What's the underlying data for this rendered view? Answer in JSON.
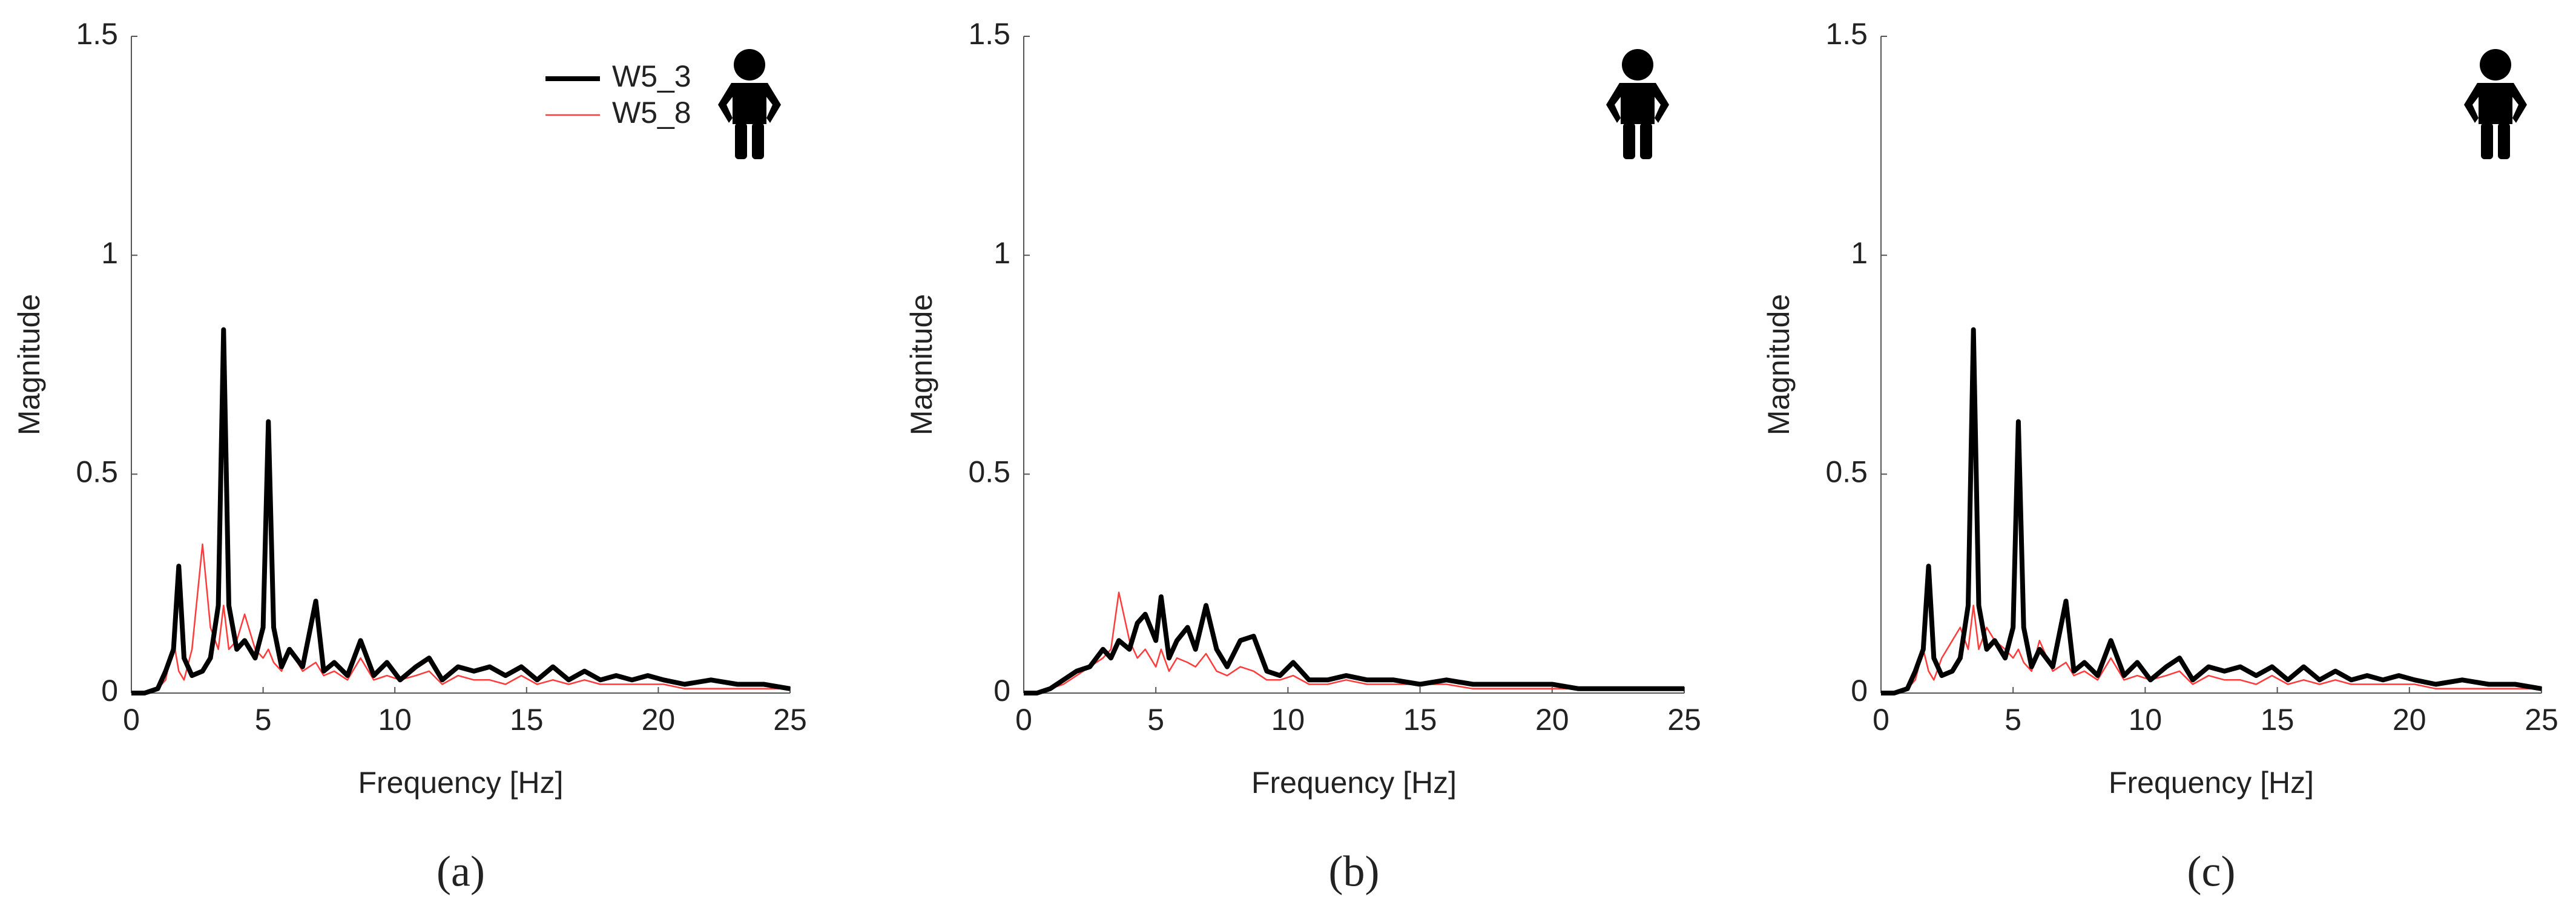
{
  "chart_data": [
    {
      "type": "line",
      "caption": "(a)",
      "xlabel": "Frequency  [Hz]",
      "ylabel": "Magnitude",
      "legend": "upper right",
      "xlim": [
        0,
        25
      ],
      "ylim": [
        0,
        1.5
      ],
      "xticks": [
        0,
        5,
        10,
        15,
        20,
        25
      ],
      "yticks": [
        0,
        0.5,
        1,
        1.5
      ],
      "x": [
        0,
        0.5,
        1,
        1.3,
        1.6,
        1.8,
        2.0,
        2.3,
        2.7,
        3.0,
        3.3,
        3.5,
        3.7,
        4.0,
        4.3,
        4.7,
        5.0,
        5.2,
        5.4,
        5.7,
        6.0,
        6.5,
        7.0,
        7.3,
        7.7,
        8.2,
        8.7,
        9.2,
        9.7,
        10.2,
        10.8,
        11.3,
        11.8,
        12.4,
        13,
        13.6,
        14.2,
        14.8,
        15.4,
        16,
        16.6,
        17.2,
        17.8,
        18.4,
        19,
        19.6,
        20.2,
        21,
        22,
        23,
        24,
        25
      ],
      "series": [
        {
          "name": "W5_3",
          "color": "#000000",
          "values": [
            0,
            0,
            0.01,
            0.05,
            0.1,
            0.29,
            0.08,
            0.04,
            0.05,
            0.08,
            0.2,
            0.83,
            0.2,
            0.1,
            0.12,
            0.08,
            0.15,
            0.62,
            0.15,
            0.06,
            0.1,
            0.06,
            0.21,
            0.05,
            0.07,
            0.04,
            0.12,
            0.04,
            0.07,
            0.03,
            0.06,
            0.08,
            0.03,
            0.06,
            0.05,
            0.06,
            0.04,
            0.06,
            0.03,
            0.06,
            0.03,
            0.05,
            0.03,
            0.04,
            0.03,
            0.04,
            0.03,
            0.02,
            0.03,
            0.02,
            0.02,
            0.01
          ]
        },
        {
          "name": "W5_8",
          "color": "#ff3b3b",
          "values": [
            0,
            0,
            0.01,
            0.03,
            0.12,
            0.05,
            0.03,
            0.1,
            0.34,
            0.15,
            0.1,
            0.2,
            0.1,
            0.12,
            0.18,
            0.1,
            0.08,
            0.1,
            0.07,
            0.05,
            0.1,
            0.05,
            0.07,
            0.04,
            0.05,
            0.03,
            0.08,
            0.03,
            0.04,
            0.03,
            0.04,
            0.05,
            0.02,
            0.04,
            0.03,
            0.03,
            0.02,
            0.04,
            0.02,
            0.03,
            0.02,
            0.03,
            0.02,
            0.02,
            0.02,
            0.02,
            0.02,
            0.01,
            0.01,
            0.01,
            0.01,
            0.01
          ]
        }
      ]
    },
    {
      "type": "line",
      "caption": "(b)",
      "xlabel": "Frequency  [Hz]",
      "ylabel": "Magnitude",
      "xlim": [
        0,
        25
      ],
      "ylim": [
        0,
        1.5
      ],
      "xticks": [
        0,
        5,
        10,
        15,
        20,
        25
      ],
      "yticks": [
        0,
        0.5,
        1,
        1.5
      ],
      "x": [
        0,
        0.5,
        1,
        1.5,
        2,
        2.5,
        3,
        3.3,
        3.6,
        4,
        4.3,
        4.6,
        5,
        5.2,
        5.5,
        5.8,
        6.2,
        6.5,
        6.9,
        7.3,
        7.7,
        8.2,
        8.7,
        9.2,
        9.7,
        10.2,
        10.8,
        11.5,
        12.2,
        13,
        14,
        15,
        16,
        17,
        18,
        19,
        20,
        21,
        22,
        23,
        24,
        25
      ],
      "series": [
        {
          "color": "#000000",
          "values": [
            0,
            0,
            0.01,
            0.03,
            0.05,
            0.06,
            0.1,
            0.08,
            0.12,
            0.1,
            0.16,
            0.18,
            0.12,
            0.22,
            0.08,
            0.12,
            0.15,
            0.1,
            0.2,
            0.1,
            0.06,
            0.12,
            0.13,
            0.05,
            0.04,
            0.07,
            0.03,
            0.03,
            0.04,
            0.03,
            0.03,
            0.02,
            0.03,
            0.02,
            0.02,
            0.02,
            0.02,
            0.01,
            0.01,
            0.01,
            0.01,
            0.01
          ]
        },
        {
          "color": "#ff3b3b",
          "values": [
            0,
            0,
            0.01,
            0.02,
            0.04,
            0.06,
            0.08,
            0.1,
            0.23,
            0.12,
            0.08,
            0.1,
            0.06,
            0.1,
            0.05,
            0.08,
            0.07,
            0.06,
            0.09,
            0.05,
            0.04,
            0.06,
            0.05,
            0.03,
            0.03,
            0.04,
            0.02,
            0.02,
            0.03,
            0.02,
            0.02,
            0.02,
            0.02,
            0.01,
            0.01,
            0.01,
            0.01,
            0.01,
            0.01,
            0.01,
            0.01,
            0.01
          ]
        }
      ]
    },
    {
      "type": "line",
      "caption": "(c)",
      "xlabel": "Frequency  [Hz]",
      "ylabel": "Magnitude",
      "xlim": [
        0,
        25
      ],
      "ylim": [
        0,
        1.5
      ],
      "xticks": [
        0,
        5,
        10,
        15,
        20,
        25
      ],
      "yticks": [
        0,
        0.5,
        1,
        1.5
      ],
      "x": [
        0,
        0.5,
        1,
        1.3,
        1.6,
        1.8,
        2.0,
        2.3,
        2.7,
        3.0,
        3.3,
        3.5,
        3.7,
        4.0,
        4.3,
        4.7,
        5.0,
        5.2,
        5.4,
        5.7,
        6.0,
        6.5,
        7.0,
        7.3,
        7.7,
        8.2,
        8.7,
        9.2,
        9.7,
        10.2,
        10.8,
        11.3,
        11.8,
        12.4,
        13,
        13.6,
        14.2,
        14.8,
        15.4,
        16,
        16.6,
        17.2,
        17.8,
        18.4,
        19,
        19.6,
        20.2,
        21,
        22,
        23,
        24,
        25
      ],
      "series": [
        {
          "color": "#000000",
          "values": [
            0,
            0,
            0.01,
            0.05,
            0.1,
            0.29,
            0.08,
            0.04,
            0.05,
            0.08,
            0.2,
            0.83,
            0.2,
            0.1,
            0.12,
            0.08,
            0.15,
            0.62,
            0.15,
            0.06,
            0.1,
            0.06,
            0.21,
            0.05,
            0.07,
            0.04,
            0.12,
            0.04,
            0.07,
            0.03,
            0.06,
            0.08,
            0.03,
            0.06,
            0.05,
            0.06,
            0.04,
            0.06,
            0.03,
            0.06,
            0.03,
            0.05,
            0.03,
            0.04,
            0.03,
            0.04,
            0.03,
            0.02,
            0.03,
            0.02,
            0.02,
            0.01
          ]
        },
        {
          "color": "#ff3b3b",
          "values": [
            0,
            0,
            0.01,
            0.03,
            0.1,
            0.05,
            0.03,
            0.08,
            0.12,
            0.15,
            0.1,
            0.2,
            0.1,
            0.15,
            0.12,
            0.1,
            0.08,
            0.1,
            0.07,
            0.05,
            0.12,
            0.05,
            0.07,
            0.04,
            0.05,
            0.03,
            0.08,
            0.03,
            0.04,
            0.03,
            0.04,
            0.05,
            0.02,
            0.04,
            0.03,
            0.03,
            0.02,
            0.04,
            0.02,
            0.03,
            0.02,
            0.03,
            0.02,
            0.02,
            0.02,
            0.02,
            0.02,
            0.01,
            0.01,
            0.01,
            0.01,
            0.01
          ]
        }
      ]
    }
  ]
}
